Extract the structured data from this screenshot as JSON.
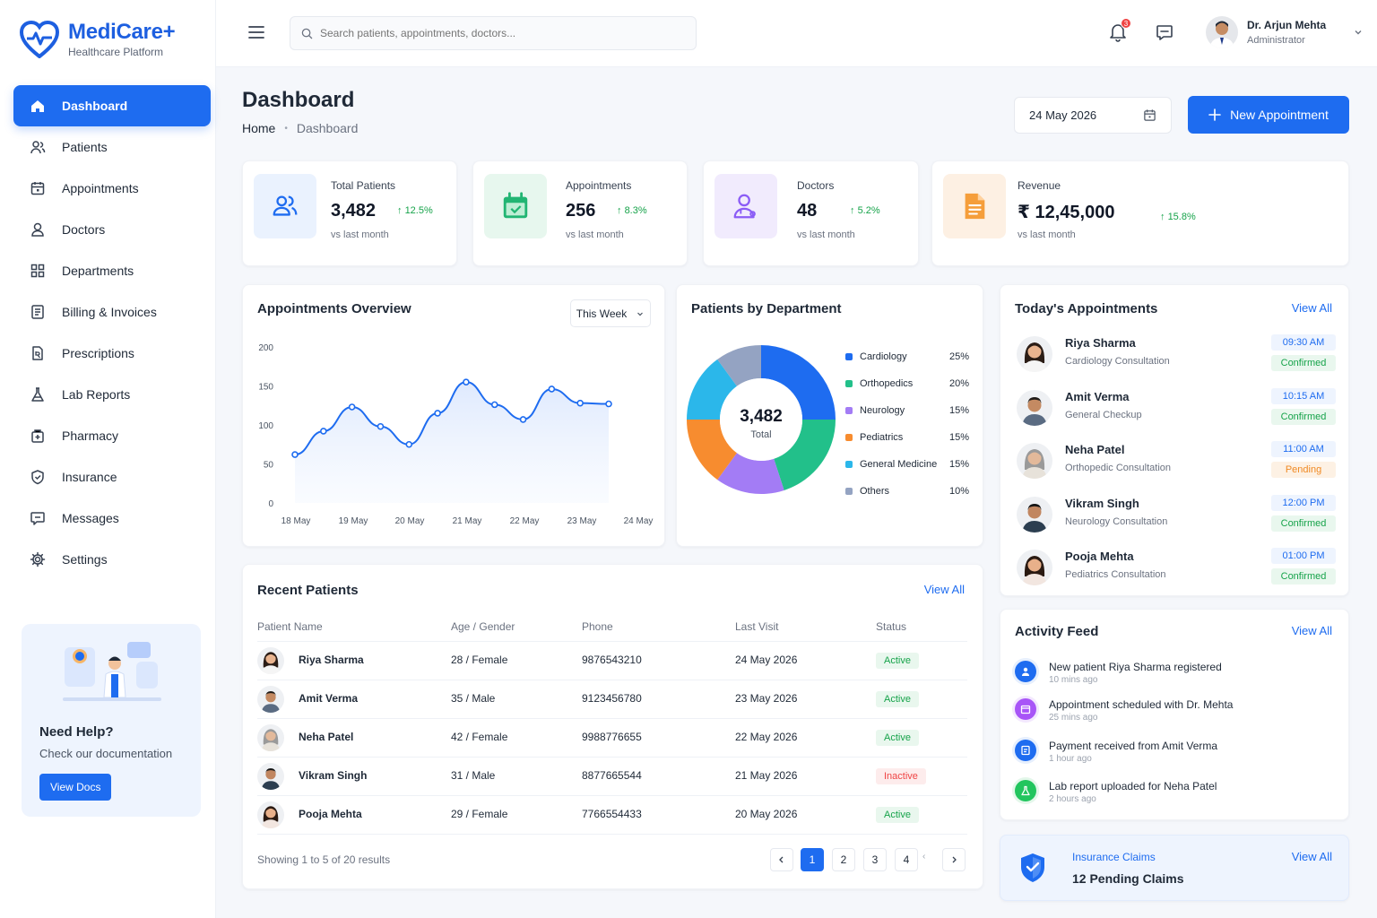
{
  "brand": {
    "name": "MediCare+",
    "tagline": "Healthcare Platform"
  },
  "nav": [
    {
      "label": "Dashboard",
      "icon": "home-icon",
      "active": true
    },
    {
      "label": "Patients",
      "icon": "users-icon"
    },
    {
      "label": "Appointments",
      "icon": "calendar-icon"
    },
    {
      "label": "Doctors",
      "icon": "user-icon"
    },
    {
      "label": "Departments",
      "icon": "grid-icon"
    },
    {
      "label": "Billing & Invoices",
      "icon": "invoice-icon"
    },
    {
      "label": "Prescriptions",
      "icon": "prescription-icon"
    },
    {
      "label": "Lab Reports",
      "icon": "flask-icon"
    },
    {
      "label": "Pharmacy",
      "icon": "pharmacy-icon"
    },
    {
      "label": "Insurance",
      "icon": "shield-icon"
    },
    {
      "label": "Messages",
      "icon": "message-icon"
    },
    {
      "label": "Settings",
      "icon": "gear-icon"
    }
  ],
  "help": {
    "title": "Need Help?",
    "subtitle": "Check our documentation",
    "button": "View Docs"
  },
  "topbar": {
    "search_placeholder": "Search patients, appointments, doctors...",
    "notifications": "3",
    "user_name": "Dr. Arjun Mehta",
    "user_role": "Administrator"
  },
  "page": {
    "title": "Dashboard",
    "crumb_home": "Home",
    "crumb_current": "Dashboard",
    "date": "24 May 2026",
    "new_button": "New Appointment"
  },
  "stats": [
    {
      "label": "Total Patients",
      "value": "3,482",
      "delta": "12.5%",
      "sub": "vs last month",
      "icon": "users-icon",
      "bg": "#eaf2fe",
      "color": "#1e6cf0"
    },
    {
      "label": "Appointments",
      "value": "256",
      "delta": "8.3%",
      "sub": "vs last month",
      "icon": "calendar-icon",
      "bg": "#e7f7ee",
      "color": "#22b573"
    },
    {
      "label": "Doctors",
      "value": "48",
      "delta": "5.2%",
      "sub": "vs last month",
      "icon": "doctor-icon",
      "bg": "#f1ebfd",
      "color": "#8b5cf6"
    },
    {
      "label": "Revenue",
      "value": "₹ 12,45,000",
      "delta": "15.8%",
      "sub": "vs last month",
      "icon": "document-icon",
      "bg": "#fdf0e3",
      "color": "#f59e3b"
    }
  ],
  "overview": {
    "title": "Appointments Overview",
    "range": "This Week"
  },
  "chart_data": [
    {
      "type": "line",
      "title": "Appointments Overview",
      "x": [
        "18 May",
        "",
        "19 May",
        "",
        "20 May",
        "",
        "21 May",
        "",
        "22 May",
        "",
        "23 May",
        ""
      ],
      "tick_labels": [
        "18 May",
        "19 May",
        "20 May",
        "21 May",
        "22 May",
        "23 May",
        "24 May"
      ],
      "values": [
        62,
        92,
        123,
        98,
        75,
        115,
        155,
        126,
        107,
        146,
        128,
        127
      ],
      "yticks": [
        0,
        50,
        100,
        150,
        200
      ],
      "ylim": [
        0,
        200
      ],
      "color": "#1e6cf0"
    },
    {
      "type": "pie",
      "title": "Patients by Department",
      "center_value": "3,482",
      "center_label": "Total",
      "slices": [
        {
          "label": "Cardiology",
          "value": 25,
          "pct": "25%",
          "color": "#1e6cf0"
        },
        {
          "label": "Orthopedics",
          "value": 20,
          "pct": "20%",
          "color": "#22c08a"
        },
        {
          "label": "Neurology",
          "value": 15,
          "pct": "15%",
          "color": "#a37cf5"
        },
        {
          "label": "Pediatrics",
          "value": 15,
          "pct": "15%",
          "color": "#f78c2f"
        },
        {
          "label": "General Medicine",
          "value": 15,
          "pct": "15%",
          "color": "#2bb7ea"
        },
        {
          "label": "Others",
          "value": 10,
          "pct": "10%",
          "color": "#94a3c2"
        }
      ]
    }
  ],
  "department": {
    "title": "Patients by Department"
  },
  "today": {
    "title": "Today's Appointments",
    "view_all": "View All",
    "items": [
      {
        "name": "Riya Sharma",
        "type": "Cardiology Consultation",
        "time": "09:30 AM",
        "status": "Confirmed"
      },
      {
        "name": "Amit Verma",
        "type": "General Checkup",
        "time": "10:15 AM",
        "status": "Confirmed"
      },
      {
        "name": "Neha Patel",
        "type": "Orthopedic Consultation",
        "time": "11:00 AM",
        "status": "Pending"
      },
      {
        "name": "Vikram Singh",
        "type": "Neurology Consultation",
        "time": "12:00 PM",
        "status": "Confirmed"
      },
      {
        "name": "Pooja Mehta",
        "type": "Pediatrics Consultation",
        "time": "01:00 PM",
        "status": "Confirmed"
      }
    ]
  },
  "recent": {
    "title": "Recent Patients",
    "view_all": "View All",
    "columns": [
      "Patient Name",
      "Age / Gender",
      "Phone",
      "Last Visit",
      "Status"
    ],
    "rows": [
      {
        "name": "Riya Sharma",
        "age": "28 / Female",
        "phone": "9876543210",
        "visit": "24 May 2026",
        "status": "Active"
      },
      {
        "name": "Amit Verma",
        "age": "35 / Male",
        "phone": "9123456780",
        "visit": "23 May 2026",
        "status": "Active"
      },
      {
        "name": "Neha Patel",
        "age": "42 / Female",
        "phone": "9988776655",
        "visit": "22 May 2026",
        "status": "Active"
      },
      {
        "name": "Vikram Singh",
        "age": "31 / Male",
        "phone": "8877665544",
        "visit": "21 May 2026",
        "status": "Inactive"
      },
      {
        "name": "Pooja Mehta",
        "age": "29 / Female",
        "phone": "7766554433",
        "visit": "20 May 2026",
        "status": "Active"
      }
    ],
    "showing": "Showing 1 to 5 of 20 results",
    "pages": [
      "1",
      "2",
      "3",
      "4"
    ]
  },
  "activity": {
    "title": "Activity Feed",
    "view_all": "View All",
    "items": [
      {
        "text": "New patient Riya Sharma registered",
        "time": "10 mins ago",
        "color": "#1e6cf0",
        "bg": "#e6effd"
      },
      {
        "text": "Appointment scheduled with Dr. Mehta",
        "time": "25 mins ago",
        "color": "#a855f7",
        "bg": "#f3e8fe"
      },
      {
        "text": "Payment received from Amit Verma",
        "time": "1 hour ago",
        "color": "#1e6cf0",
        "bg": "#e6effd"
      },
      {
        "text": "Lab report uploaded for Neha Patel",
        "time": "2 hours ago",
        "color": "#22c55e",
        "bg": "#e3f7ea"
      }
    ]
  },
  "insurance": {
    "title": "Insurance Claims",
    "value": "12 Pending Claims",
    "view_all": "View All"
  }
}
